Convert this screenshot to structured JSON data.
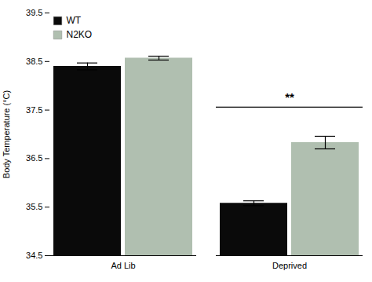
{
  "chart_data": {
    "type": "bar",
    "categories": [
      "Ad Lib",
      "Deprived"
    ],
    "series": [
      {
        "name": "WT",
        "color": "#0a0a0a",
        "values": [
          38.4,
          35.58
        ],
        "errors": [
          0.07,
          0.05
        ]
      },
      {
        "name": "N2KO",
        "color": "#b0bfb0",
        "values": [
          38.57,
          36.83
        ],
        "errors": [
          0.04,
          0.13
        ]
      }
    ],
    "ylabel": "Body Temperature (°C)",
    "ylim": [
      34.5,
      39.5
    ],
    "yticks": [
      34.5,
      35.5,
      36.5,
      37.5,
      38.5,
      39.5
    ],
    "grid": false,
    "legend": "upper left",
    "annotations": [
      {
        "text": "**",
        "category": "Deprived",
        "y": 37.68,
        "line_y": 37.56
      }
    ]
  }
}
